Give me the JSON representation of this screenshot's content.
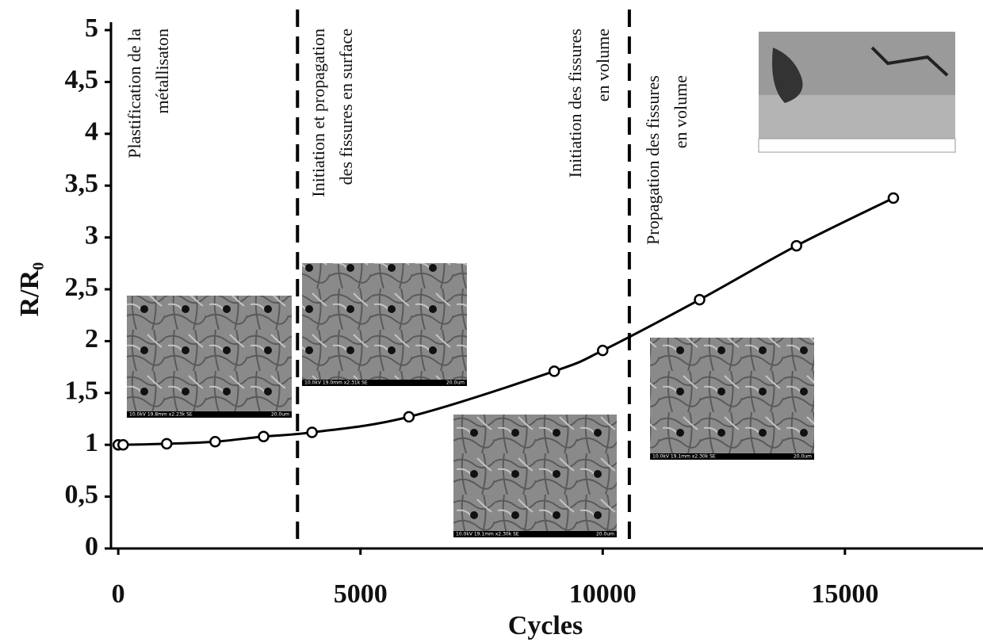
{
  "chart_data": {
    "type": "line",
    "x_label": "Cycles",
    "y_label": "R/R₀",
    "x": [
      0,
      100,
      1000,
      2000,
      3000,
      4000,
      6000,
      9000,
      10000,
      12000,
      14000,
      16000
    ],
    "series": [
      {
        "color": "#000000",
        "values": [
          1.0,
          1.0,
          1.01,
          1.03,
          1.08,
          1.12,
          1.27,
          1.71,
          1.91,
          2.4,
          2.92,
          3.38
        ]
      }
    ],
    "xlim": [
      -150,
      17850
    ],
    "ylim": [
      0,
      5
    ],
    "xticks": [
      0,
      5000,
      10000,
      15000
    ],
    "yticks": [
      0,
      {
        "value": 0.5,
        "label": "0,5"
      },
      1,
      {
        "value": 1.5,
        "label": "1,5"
      },
      2,
      {
        "value": 2.5,
        "label": "2,5"
      },
      3,
      {
        "value": 3.5,
        "label": "3,5"
      },
      4,
      {
        "value": 4.5,
        "label": "4,5"
      },
      5
    ],
    "phase_boundaries": [
      3700,
      10550
    ],
    "annotations": [
      {
        "lines": [
          "Plastification de la",
          "métallisaton"
        ]
      },
      {
        "lines": [
          "Initiation et propagation",
          "des fissures en surface"
        ]
      },
      {
        "lines": [
          "Initiation des fissures",
          "en volume"
        ]
      },
      {
        "lines": [
          "Propagation des fissures",
          "en volume"
        ]
      }
    ],
    "images": [
      {
        "caption": "10.0kV 19.8mm x2.23k SE",
        "scale": "20.0um"
      },
      {
        "caption": "10.0kV 19.0mm x2.31k SE",
        "scale": "20.0um"
      },
      {
        "caption": "10.0kV 19.1mm x2.30k SE",
        "scale": "20.0um"
      },
      {
        "caption": "10.0kV 19.1mm x2.30k SE",
        "scale": "20.0um"
      }
    ]
  }
}
